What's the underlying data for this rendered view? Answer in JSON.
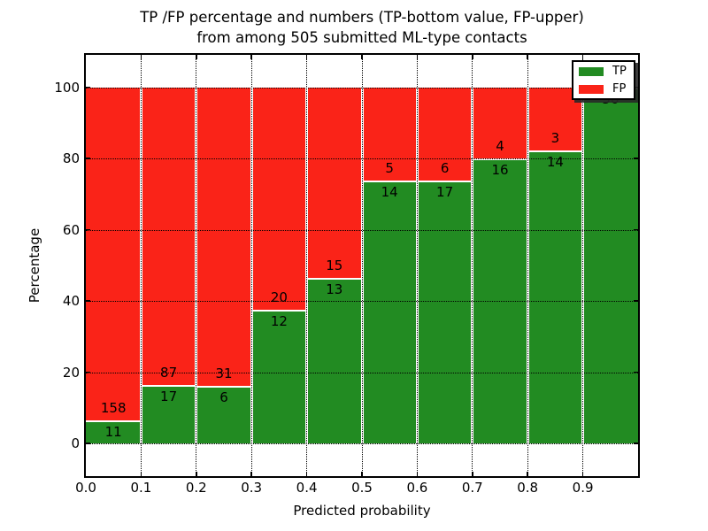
{
  "title": {
    "line1": "TP /FP percentage and numbers (TP-bottom value, FP-upper)",
    "line2": "from among 505 submitted ML-type contacts"
  },
  "chart_data": {
    "type": "bar",
    "stacked": true,
    "normalized": "each bar scaled to 100%, labels show raw counts (TP bottom, FP upper)",
    "title": "TP /FP percentage and numbers (TP-bottom value, FP-upper)\nfrom among 505 submitted ML-type contacts",
    "xlabel": "Predicted probability",
    "ylabel": "Percentage",
    "total_contacts": 505,
    "bin_width": 0.1,
    "categories": [
      "0.0-0.1",
      "0.1-0.2",
      "0.2-0.3",
      "0.3-0.4",
      "0.4-0.5",
      "0.5-0.6",
      "0.6-0.7",
      "0.7-0.8",
      "0.8-0.9",
      "0.9-1.0"
    ],
    "series": [
      {
        "name": "TP",
        "color": "#228b22",
        "values": [
          11,
          17,
          6,
          12,
          13,
          14,
          17,
          16,
          14,
          56
        ]
      },
      {
        "name": "FP",
        "color": "#fa2318",
        "values": [
          158,
          87,
          31,
          20,
          15,
          5,
          6,
          4,
          3,
          0
        ]
      }
    ],
    "tp_percent_of_bin": [
      6.5,
      16.3,
      16.2,
      37.5,
      46.4,
      73.7,
      73.9,
      80.0,
      82.4,
      100.0
    ],
    "x_tick_labels": [
      "0.0",
      "0.1",
      "0.2",
      "0.3",
      "0.4",
      "0.5",
      "0.6",
      "0.7",
      "0.8",
      "0.9"
    ],
    "y_tick_labels": [
      "0",
      "20",
      "40",
      "60",
      "80",
      "100"
    ],
    "y_tick_values": [
      0,
      20,
      40,
      60,
      80,
      100
    ],
    "xlim": [
      0.0,
      1.0
    ],
    "ylim": [
      -9,
      109
    ],
    "grid": true,
    "grid_style": "dotted",
    "legend_position": "upper right",
    "legend": [
      {
        "label": "TP",
        "color": "#228b22"
      },
      {
        "label": "FP",
        "color": "#fa2318"
      }
    ]
  }
}
